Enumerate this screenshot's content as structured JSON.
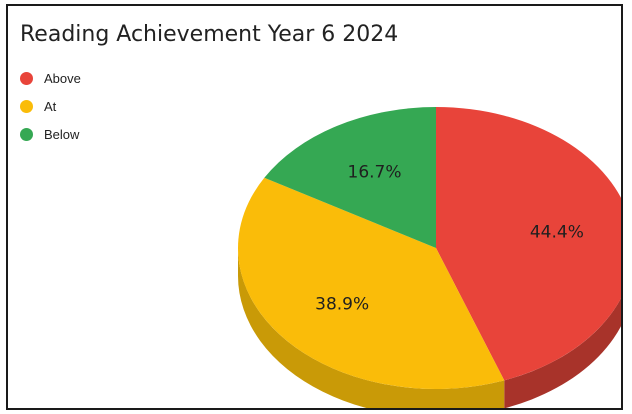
{
  "chart_data": {
    "type": "pie",
    "title": "Reading Achievement Year 6 2024",
    "legend_position": "top-left",
    "slices": [
      {
        "label": "Above",
        "value": 44.4,
        "value_label": "44.4%",
        "color": "#E8443A",
        "side_color": "#A8332A"
      },
      {
        "label": "At",
        "value": 38.9,
        "value_label": "38.9%",
        "color": "#FABC09",
        "side_color": "#C99A07"
      },
      {
        "label": "Below",
        "value": 16.7,
        "value_label": "16.7%",
        "color": "#35A853",
        "side_color": "#2A8A43"
      }
    ]
  },
  "colors": {
    "frame_border": "#1a1a1a",
    "background": "#ffffff"
  }
}
